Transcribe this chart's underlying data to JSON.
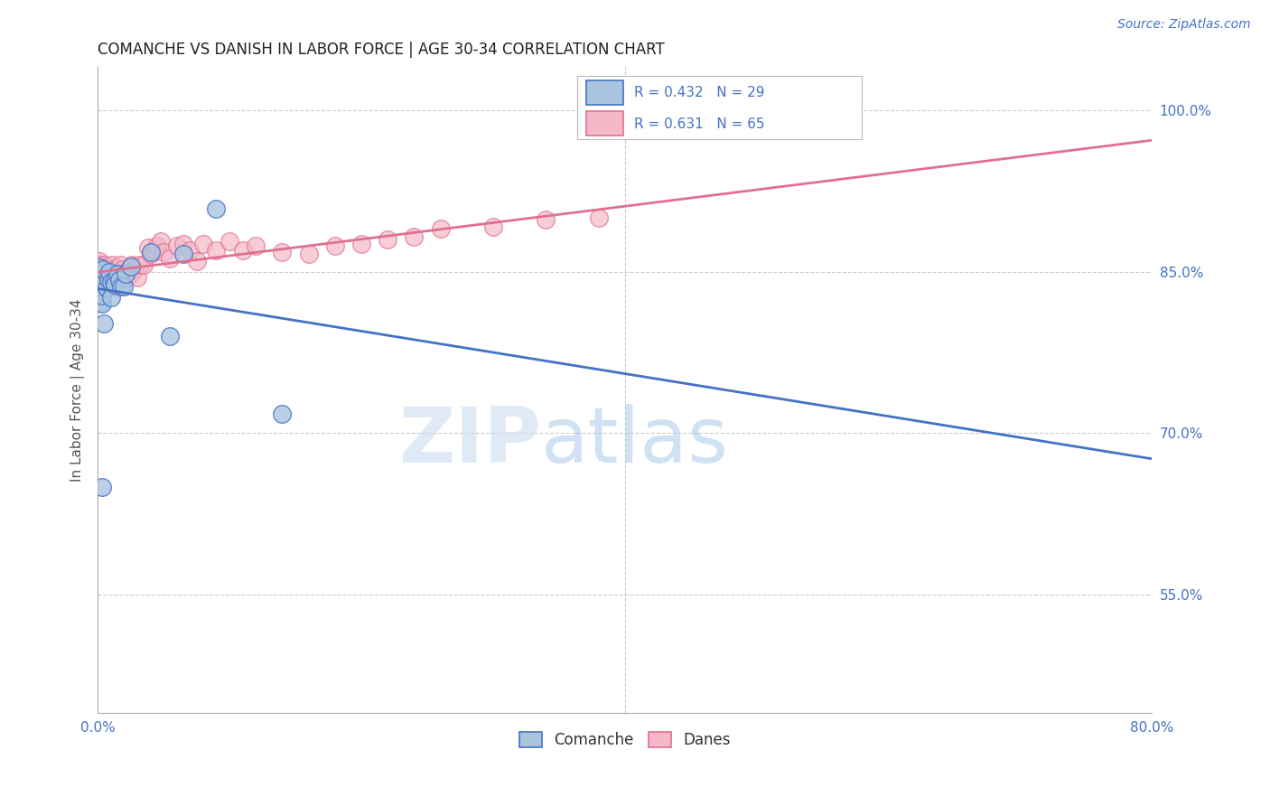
{
  "title": "COMANCHE VS DANISH IN LABOR FORCE | AGE 30-34 CORRELATION CHART",
  "source": "Source: ZipAtlas.com",
  "ylabel": "In Labor Force | Age 30-34",
  "xlim": [
    0.0,
    0.8
  ],
  "ylim": [
    0.44,
    1.04
  ],
  "xticks": [
    0.0,
    0.1,
    0.2,
    0.3,
    0.4,
    0.5,
    0.6,
    0.7,
    0.8
  ],
  "xticklabels": [
    "0.0%",
    "",
    "",
    "",
    "",
    "",
    "",
    "",
    "80.0%"
  ],
  "yticks": [
    0.55,
    0.7,
    0.85,
    1.0
  ],
  "yticklabels": [
    "55.0%",
    "70.0%",
    "85.0%",
    "100.0%"
  ],
  "comanche_R": 0.432,
  "comanche_N": 29,
  "danes_R": 0.631,
  "danes_N": 65,
  "comanche_color": "#aac4e0",
  "danes_color": "#f4b8c8",
  "comanche_line_color": "#4472c4",
  "danes_line_color": "#e07090",
  "legend_text_color": "#4472c4",
  "comanche_x": [
    0.001,
    0.001,
    0.001,
    0.002,
    0.002,
    0.003,
    0.003,
    0.003,
    0.004,
    0.005,
    0.007,
    0.008,
    0.009,
    0.01,
    0.01,
    0.012,
    0.013,
    0.015,
    0.016,
    0.018,
    0.02,
    0.021,
    0.025,
    0.04,
    0.055,
    0.065,
    0.09,
    0.14,
    0.003
  ],
  "comanche_y": [
    0.838,
    0.846,
    0.854,
    0.822,
    0.836,
    0.82,
    0.828,
    0.84,
    0.852,
    0.802,
    0.835,
    0.843,
    0.85,
    0.826,
    0.84,
    0.84,
    0.838,
    0.848,
    0.842,
    0.836,
    0.836,
    0.848,
    0.855,
    0.868,
    0.79,
    0.866,
    0.908,
    0.718,
    0.65
  ],
  "danes_x": [
    0.001,
    0.001,
    0.001,
    0.002,
    0.002,
    0.002,
    0.003,
    0.003,
    0.003,
    0.004,
    0.004,
    0.005,
    0.005,
    0.006,
    0.007,
    0.008,
    0.008,
    0.009,
    0.009,
    0.01,
    0.01,
    0.011,
    0.012,
    0.013,
    0.014,
    0.015,
    0.016,
    0.017,
    0.018,
    0.019,
    0.02,
    0.022,
    0.024,
    0.025,
    0.026,
    0.028,
    0.03,
    0.032,
    0.035,
    0.038,
    0.04,
    0.043,
    0.045,
    0.048,
    0.05,
    0.055,
    0.06,
    0.065,
    0.07,
    0.075,
    0.08,
    0.09,
    0.1,
    0.11,
    0.12,
    0.14,
    0.16,
    0.18,
    0.2,
    0.22,
    0.24,
    0.26,
    0.3,
    0.34,
    0.38
  ],
  "danes_y": [
    0.845,
    0.852,
    0.86,
    0.836,
    0.848,
    0.856,
    0.838,
    0.846,
    0.854,
    0.832,
    0.842,
    0.848,
    0.856,
    0.84,
    0.836,
    0.843,
    0.852,
    0.84,
    0.85,
    0.84,
    0.848,
    0.856,
    0.836,
    0.845,
    0.853,
    0.844,
    0.848,
    0.856,
    0.848,
    0.852,
    0.848,
    0.845,
    0.853,
    0.848,
    0.856,
    0.852,
    0.845,
    0.856,
    0.856,
    0.872,
    0.866,
    0.87,
    0.874,
    0.878,
    0.868,
    0.862,
    0.874,
    0.876,
    0.87,
    0.86,
    0.876,
    0.87,
    0.878,
    0.87,
    0.874,
    0.868,
    0.866,
    0.874,
    0.876,
    0.88,
    0.882,
    0.89,
    0.892,
    0.898,
    0.9
  ],
  "watermark_zip": "ZIP",
  "watermark_atlas": "atlas",
  "background_color": "#ffffff"
}
